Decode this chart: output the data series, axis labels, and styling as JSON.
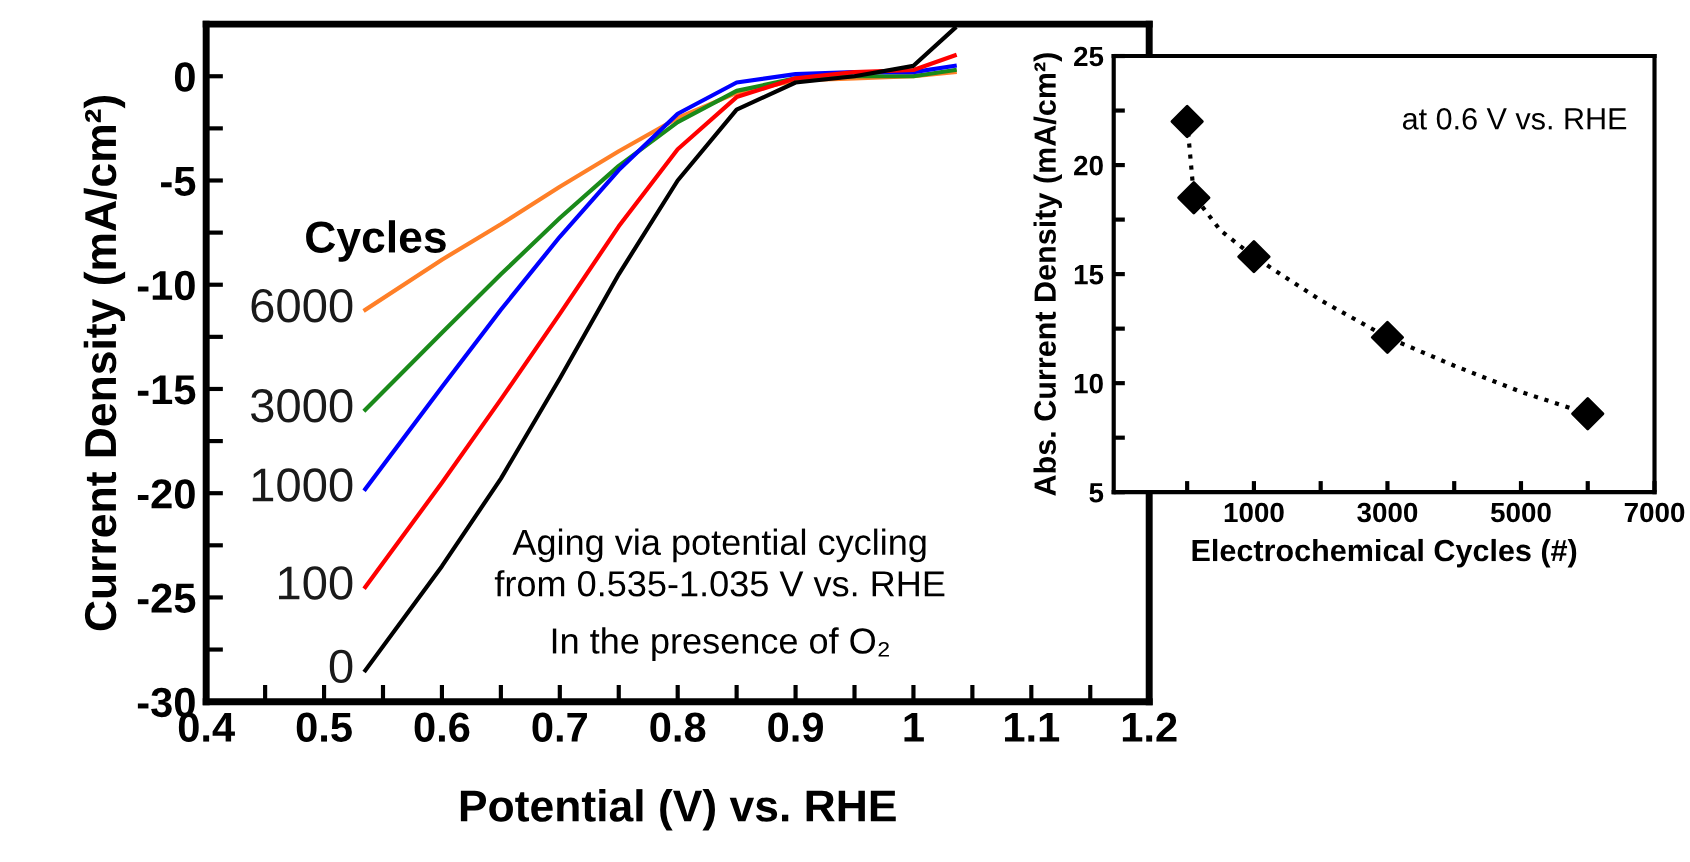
{
  "chart_data": [
    {
      "type": "line",
      "xlabel": "Potential (V) vs. RHE",
      "ylabel": "Current Density (mA/cm²)",
      "legend": false,
      "grid": false,
      "xlim": [
        0.4,
        1.2
      ],
      "ylim": [
        -30,
        2.5
      ],
      "xticks": [
        0.4,
        {
          "value": 0.45,
          "label": null
        },
        0.5,
        {
          "value": 0.55,
          "label": null
        },
        0.6,
        {
          "value": 0.65,
          "label": null
        },
        0.7,
        {
          "value": 0.75,
          "label": null
        },
        0.8,
        {
          "value": 0.85,
          "label": null
        },
        0.9,
        {
          "value": 0.95,
          "label": null
        },
        1,
        {
          "value": 1.05,
          "label": null
        },
        1.1,
        {
          "value": 1.15,
          "label": null
        },
        1.2
      ],
      "yticks": [
        0,
        {
          "value": -2.5,
          "label": null
        },
        -5,
        {
          "value": -7.5,
          "label": null
        },
        -10,
        {
          "value": -12.5,
          "label": null
        },
        -15,
        {
          "value": -17.5,
          "label": null
        },
        -20,
        {
          "value": -22.5,
          "label": null
        },
        -25,
        {
          "value": -27.5,
          "label": null
        },
        -30
      ],
      "annotations": [
        "Aging via potential cycling\nfrom 0.535-1.035 V vs. RHE",
        "In the presence of O₂",
        "Cycles",
        "6000",
        "3000",
        "1000",
        "100",
        "0"
      ],
      "series": [
        {
          "color": "#ff7f27",
          "x": [
            0.535,
            0.6,
            0.65,
            0.7,
            0.75,
            0.8,
            0.85,
            0.9,
            0.95,
            1.0,
            1.035
          ],
          "values": [
            -11.2,
            -8.8,
            -7.1,
            -5.3,
            -3.6,
            -2.0,
            -0.8,
            -0.2,
            -0.1,
            0,
            0.2
          ]
        },
        {
          "color": "#1a8a1a",
          "x": [
            0.535,
            0.6,
            0.65,
            0.7,
            0.75,
            0.8,
            0.85,
            0.9,
            0.95,
            1.0,
            1.035
          ],
          "values": [
            -16,
            -12.3,
            -9.5,
            -6.8,
            -4.3,
            -2.2,
            -0.7,
            -0.1,
            0,
            0,
            0.3
          ]
        },
        {
          "color": "#0000ff",
          "x": [
            0.535,
            0.6,
            0.65,
            0.7,
            0.75,
            0.8,
            0.85,
            0.9,
            0.95,
            1.0,
            1.035
          ],
          "values": [
            -19.8,
            -14.9,
            -11.2,
            -7.7,
            -4.5,
            -1.8,
            -0.3,
            0.1,
            0.2,
            0.2,
            0.5
          ]
        },
        {
          "color": "#ff0000",
          "x": [
            0.535,
            0.6,
            0.65,
            0.7,
            0.75,
            0.8,
            0.85,
            0.9,
            0.95,
            1.0,
            1.035
          ],
          "values": [
            -24.5,
            -19.5,
            -15.5,
            -11.4,
            -7.2,
            -3.5,
            -1.0,
            -0.1,
            0.2,
            0.3,
            1.0
          ]
        },
        {
          "color": "#000000",
          "x": [
            0.535,
            0.6,
            0.65,
            0.7,
            0.75,
            0.8,
            0.85,
            0.9,
            0.95,
            1.0,
            1.035
          ],
          "values": [
            -28.5,
            -23.5,
            -19.3,
            -14.5,
            -9.5,
            -5.0,
            -1.6,
            -0.3,
            0,
            0.5,
            2.3
          ]
        }
      ]
    },
    {
      "type": "scatter",
      "xlabel": "Electrochemical Cycles (#)",
      "ylabel": "Abs. Current Density (mA/cm²)",
      "legend": false,
      "grid": false,
      "xlim": [
        -1100,
        7000
      ],
      "ylim": [
        5,
        25
      ],
      "xticks": [
        {
          "value": 0,
          "label": null
        },
        1000,
        {
          "value": 2000,
          "label": null
        },
        3000,
        {
          "value": 4000,
          "label": null
        },
        5000,
        {
          "value": 6000,
          "label": null
        },
        7000
      ],
      "yticks": [
        5,
        {
          "value": 7.5,
          "label": null
        },
        10,
        {
          "value": 12.5,
          "label": null
        },
        15,
        {
          "value": 17.5,
          "label": null
        },
        20,
        {
          "value": 22.5,
          "label": null
        },
        25
      ],
      "annotations": [
        "at 0.6 V vs. RHE"
      ],
      "series": [
        {
          "type": "line",
          "color": "#000000",
          "line_style": "dotted",
          "marker": "none",
          "x": [
            0,
            100,
            500,
            1000,
            2000,
            3000,
            4000,
            5000,
            6000
          ],
          "values": [
            22,
            18.6,
            17,
            15.8,
            13.8,
            12.1,
            10.8,
            9.6,
            8.6
          ]
        },
        {
          "type": "scatter",
          "color": "#000000",
          "marker": "diamond",
          "x": [
            0,
            100,
            1000,
            3000,
            6000
          ],
          "values": [
            22,
            18.5,
            15.8,
            12.1,
            8.6
          ]
        }
      ]
    }
  ]
}
